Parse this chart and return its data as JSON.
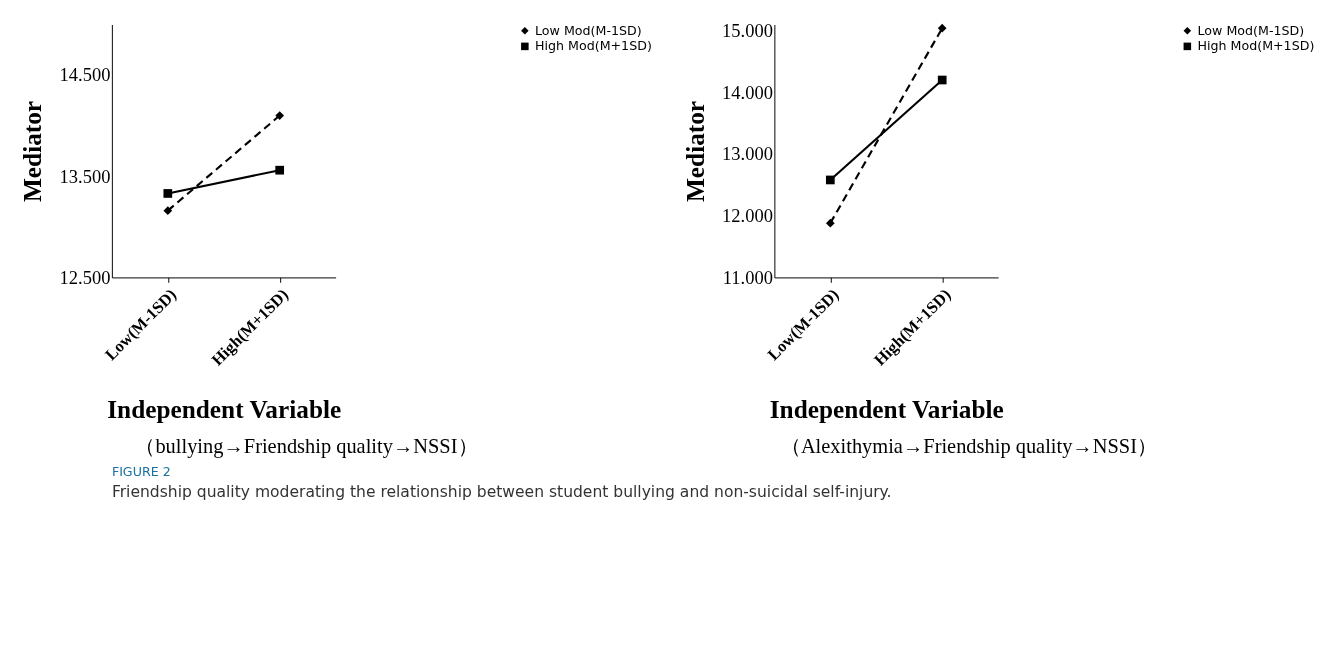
{
  "chart_data": [
    {
      "type": "line",
      "xlabel": "Independent Variable",
      "ylabel": "Mediator",
      "categories": [
        "Low(M-1SD)",
        "High(M+1SD)"
      ],
      "series": [
        {
          "name": "Low Mod(M-1SD)",
          "color": "#000000",
          "values": [
            13.16,
            14.1
          ],
          "marker": "diamond",
          "line_style": "dashed"
        },
        {
          "name": "High Mod(M+1SD)",
          "color": "#000000",
          "values": [
            13.33,
            13.56
          ],
          "marker": "square",
          "line_style": "solid"
        }
      ],
      "ylim": [
        12.5,
        15.0
      ],
      "yticks": [
        {
          "value": 12.5,
          "label": "12.500"
        },
        {
          "value": 13.5,
          "label": "13.500"
        },
        {
          "value": 14.5,
          "label": "14.500"
        }
      ],
      "grid": false,
      "legend": "top right",
      "annotations": [
        "（bullying→Friendship quality→NSSI）",
        "FIGURE 2",
        "Friendship quality moderating the relationship between student bullying and non-suicidal self-injury."
      ]
    },
    {
      "type": "line",
      "xlabel": "Independent Variable",
      "ylabel": "Mediator",
      "categories": [
        "Low(M-1SD)",
        "High(M+1SD)"
      ],
      "series": [
        {
          "name": "Low Mod(M-1SD)",
          "color": "#000000",
          "values": [
            11.88,
            15.04
          ],
          "marker": "diamond",
          "line_style": "dashed"
        },
        {
          "name": "High Mod(M+1SD)",
          "color": "#000000",
          "values": [
            12.58,
            14.2
          ],
          "marker": "square",
          "line_style": "solid"
        }
      ],
      "ylim": [
        11.0,
        15.1
      ],
      "yticks": [
        {
          "value": 11,
          "label": "11.000"
        },
        {
          "value": 12,
          "label": "12.000"
        },
        {
          "value": 13,
          "label": "13.000"
        },
        {
          "value": 14,
          "label": "14.000"
        },
        {
          "value": 15,
          "label": "15.000"
        }
      ],
      "grid": false,
      "legend": "top right",
      "annotations": [
        "（Alexithymia→Friendship quality→NSSI）"
      ]
    }
  ]
}
